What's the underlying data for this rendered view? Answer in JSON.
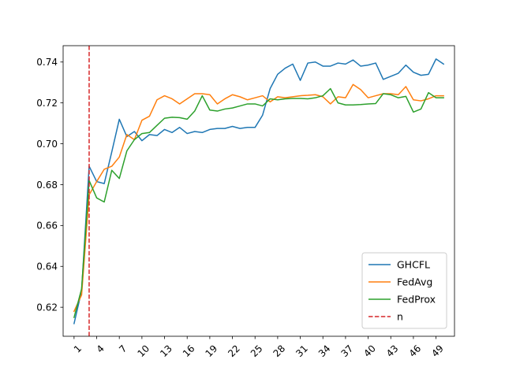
{
  "chart_data": {
    "type": "line",
    "title": "",
    "xlabel": "",
    "ylabel": "",
    "x": [
      1,
      2,
      3,
      4,
      5,
      6,
      7,
      8,
      9,
      10,
      11,
      12,
      13,
      14,
      15,
      16,
      17,
      18,
      19,
      20,
      21,
      22,
      23,
      24,
      25,
      26,
      27,
      28,
      29,
      30,
      31,
      32,
      33,
      34,
      35,
      36,
      37,
      38,
      39,
      40,
      41,
      42,
      43,
      44,
      45,
      46,
      47,
      48,
      49,
      50
    ],
    "xlim": [
      -0.45,
      51.45
    ],
    "ylim": [
      0.6058,
      0.748
    ],
    "xticks": [
      1,
      4,
      7,
      10,
      13,
      16,
      19,
      22,
      25,
      28,
      31,
      34,
      37,
      40,
      43,
      46,
      49
    ],
    "xtick_labels": [
      "1",
      "4",
      "7",
      "10",
      "13",
      "16",
      "19",
      "22",
      "25",
      "28",
      "31",
      "34",
      "37",
      "40",
      "43",
      "46",
      "49"
    ],
    "yticks": [
      0.62,
      0.64,
      0.66,
      0.68,
      0.7,
      0.72,
      0.74
    ],
    "ytick_labels": [
      "0.62",
      "0.64",
      "0.66",
      "0.68",
      "0.70",
      "0.72",
      "0.74"
    ],
    "grid": false,
    "legend_position": "lower-right",
    "series": [
      {
        "name": "GHCFL",
        "color": "#1f77b4",
        "values": [
          0.612,
          0.628,
          0.689,
          0.6815,
          0.6805,
          0.696,
          0.712,
          0.7035,
          0.706,
          0.7015,
          0.7045,
          0.704,
          0.707,
          0.7055,
          0.708,
          0.705,
          0.706,
          0.7055,
          0.707,
          0.7075,
          0.7075,
          0.7085,
          0.7075,
          0.708,
          0.708,
          0.714,
          0.727,
          0.734,
          0.737,
          0.739,
          0.731,
          0.7395,
          0.74,
          0.738,
          0.738,
          0.7395,
          0.739,
          0.741,
          0.738,
          0.7385,
          0.7395,
          0.7315,
          0.733,
          0.7345,
          0.7385,
          0.735,
          0.7335,
          0.734,
          0.7415,
          0.739
        ]
      },
      {
        "name": "FedAvg",
        "color": "#ff7f0e",
        "values": [
          0.618,
          0.626,
          0.675,
          0.6815,
          0.6875,
          0.689,
          0.6935,
          0.7045,
          0.702,
          0.7115,
          0.7135,
          0.7215,
          0.7235,
          0.722,
          0.7195,
          0.722,
          0.7245,
          0.7245,
          0.724,
          0.7195,
          0.722,
          0.724,
          0.723,
          0.7215,
          0.7225,
          0.7235,
          0.7205,
          0.723,
          0.7225,
          0.723,
          0.7235,
          0.7237,
          0.724,
          0.723,
          0.7195,
          0.723,
          0.7225,
          0.729,
          0.7265,
          0.7225,
          0.7235,
          0.7245,
          0.7245,
          0.724,
          0.728,
          0.7215,
          0.721,
          0.722,
          0.7235,
          0.7235
        ]
      },
      {
        "name": "FedProx",
        "color": "#2ca02c",
        "values": [
          0.615,
          0.629,
          0.682,
          0.6735,
          0.6715,
          0.687,
          0.683,
          0.6965,
          0.702,
          0.705,
          0.7055,
          0.709,
          0.7125,
          0.713,
          0.7128,
          0.712,
          0.716,
          0.7235,
          0.7165,
          0.716,
          0.717,
          0.7175,
          0.7185,
          0.7195,
          0.7195,
          0.7185,
          0.722,
          0.7215,
          0.722,
          0.7222,
          0.7222,
          0.722,
          0.7225,
          0.7235,
          0.727,
          0.72,
          0.719,
          0.719,
          0.7192,
          0.7195,
          0.7197,
          0.7245,
          0.724,
          0.7225,
          0.7232,
          0.7155,
          0.717,
          0.725,
          0.7225,
          0.7225
        ]
      },
      {
        "name": "n",
        "color": "#d62728",
        "style": "dashed",
        "vline_x": 3
      }
    ]
  }
}
